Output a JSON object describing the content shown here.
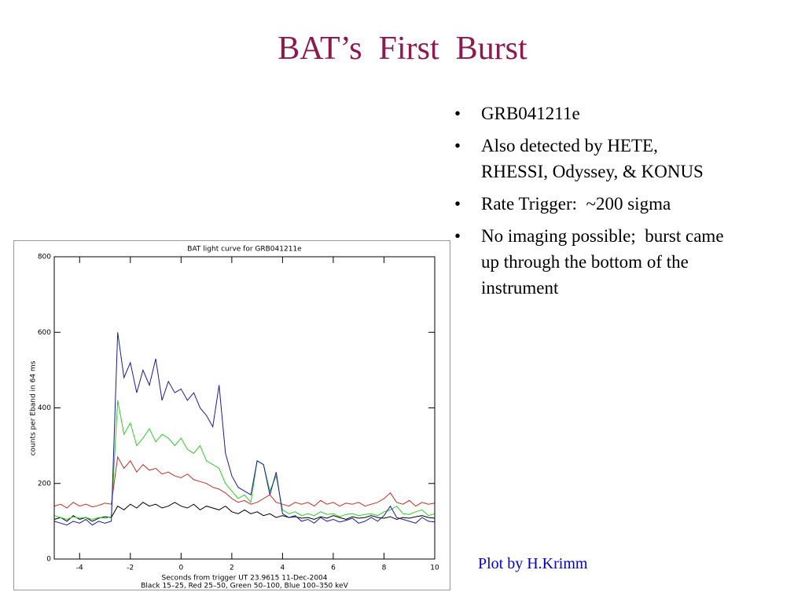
{
  "slide": {
    "title": "BAT’s  First  Burst",
    "bullets": [
      [
        "GRB041211e"
      ],
      [
        "Also detected by HETE,",
        "RHESSI, Odyssey, & KONUS"
      ],
      [
        "Rate Trigger:  ~200 sigma"
      ],
      [
        "No imaging possible;  burst came",
        "up through the bottom of the",
        "instrument"
      ]
    ],
    "bullet_symbol": "•",
    "credit": "Plot by H.Krimm"
  },
  "chart_data": {
    "type": "line",
    "title": "BAT light curve for GRB041211e",
    "xlabel": "Seconds from trigger UT 23.9615 11-Dec-2004",
    "caption": "Black 15–25, Red 25–50, Green 50–100, Blue 100–350 keV",
    "ylabel": "counts per Eband in 64 ms",
    "xlim": [
      -5,
      10
    ],
    "ylim": [
      0,
      800
    ],
    "xticks": [
      -4,
      -2,
      0,
      2,
      4,
      6,
      8,
      10
    ],
    "yticks": [
      0,
      200,
      400,
      600,
      800
    ],
    "x": [
      -5,
      -4.75,
      -4.5,
      -4.25,
      -4,
      -3.75,
      -3.5,
      -3.25,
      -3,
      -2.75,
      -2.5,
      -2.25,
      -2,
      -1.75,
      -1.5,
      -1.25,
      -1,
      -0.75,
      -0.5,
      -0.25,
      0,
      0.25,
      0.5,
      0.75,
      1,
      1.25,
      1.5,
      1.75,
      2,
      2.25,
      2.5,
      2.75,
      3,
      3.25,
      3.5,
      3.75,
      4,
      4.25,
      4.5,
      4.75,
      5,
      5.25,
      5.5,
      5.75,
      6,
      6.25,
      6.5,
      6.75,
      7,
      7.25,
      7.5,
      7.75,
      8,
      8.25,
      8.5,
      8.75,
      9,
      9.25,
      9.5,
      9.75,
      10
    ],
    "series": [
      {
        "color": "#000000",
        "values": [
          105,
          110,
          100,
          115,
          105,
          110,
          100,
          108,
          112,
          110,
          140,
          130,
          145,
          135,
          150,
          140,
          145,
          135,
          140,
          150,
          140,
          135,
          145,
          130,
          140,
          135,
          130,
          140,
          125,
          120,
          130,
          120,
          125,
          115,
          120,
          110,
          115,
          110,
          112,
          108,
          110,
          105,
          112,
          108,
          115,
          110,
          105,
          112,
          108,
          110,
          115,
          110,
          108,
          112,
          105,
          110,
          108,
          112,
          115,
          110,
          108
        ]
      },
      {
        "color": "#c0302a",
        "values": [
          140,
          145,
          135,
          150,
          140,
          145,
          138,
          142,
          148,
          145,
          270,
          240,
          260,
          230,
          250,
          235,
          240,
          225,
          230,
          220,
          215,
          225,
          210,
          205,
          200,
          190,
          185,
          175,
          160,
          150,
          155,
          145,
          150,
          160,
          170,
          150,
          145,
          140,
          150,
          145,
          150,
          140,
          155,
          145,
          150,
          140,
          148,
          145,
          150,
          140,
          145,
          150,
          160,
          175,
          150,
          145,
          155,
          140,
          150,
          145,
          148
        ]
      },
      {
        "color": "#2ecc2e",
        "values": [
          115,
          110,
          105,
          112,
          108,
          110,
          105,
          110,
          108,
          112,
          420,
          330,
          360,
          300,
          320,
          345,
          310,
          330,
          320,
          300,
          320,
          290,
          280,
          300,
          260,
          250,
          240,
          200,
          180,
          160,
          170,
          150,
          260,
          250,
          180,
          220,
          130,
          120,
          125,
          115,
          120,
          115,
          125,
          118,
          120,
          112,
          118,
          120,
          115,
          118,
          120,
          115,
          125,
          130,
          140,
          120,
          118,
          125,
          130,
          115,
          120
        ]
      },
      {
        "color": "#1a1a9c",
        "values": [
          100,
          95,
          90,
          100,
          95,
          105,
          90,
          100,
          95,
          100,
          600,
          480,
          520,
          440,
          500,
          460,
          530,
          420,
          470,
          440,
          450,
          420,
          440,
          400,
          380,
          350,
          460,
          280,
          220,
          190,
          180,
          170,
          260,
          250,
          170,
          230,
          120,
          110,
          115,
          100,
          105,
          95,
          110,
          100,
          105,
          98,
          102,
          108,
          95,
          100,
          110,
          100,
          115,
          140,
          110,
          105,
          100,
          95,
          110,
          100,
          98
        ]
      }
    ]
  }
}
